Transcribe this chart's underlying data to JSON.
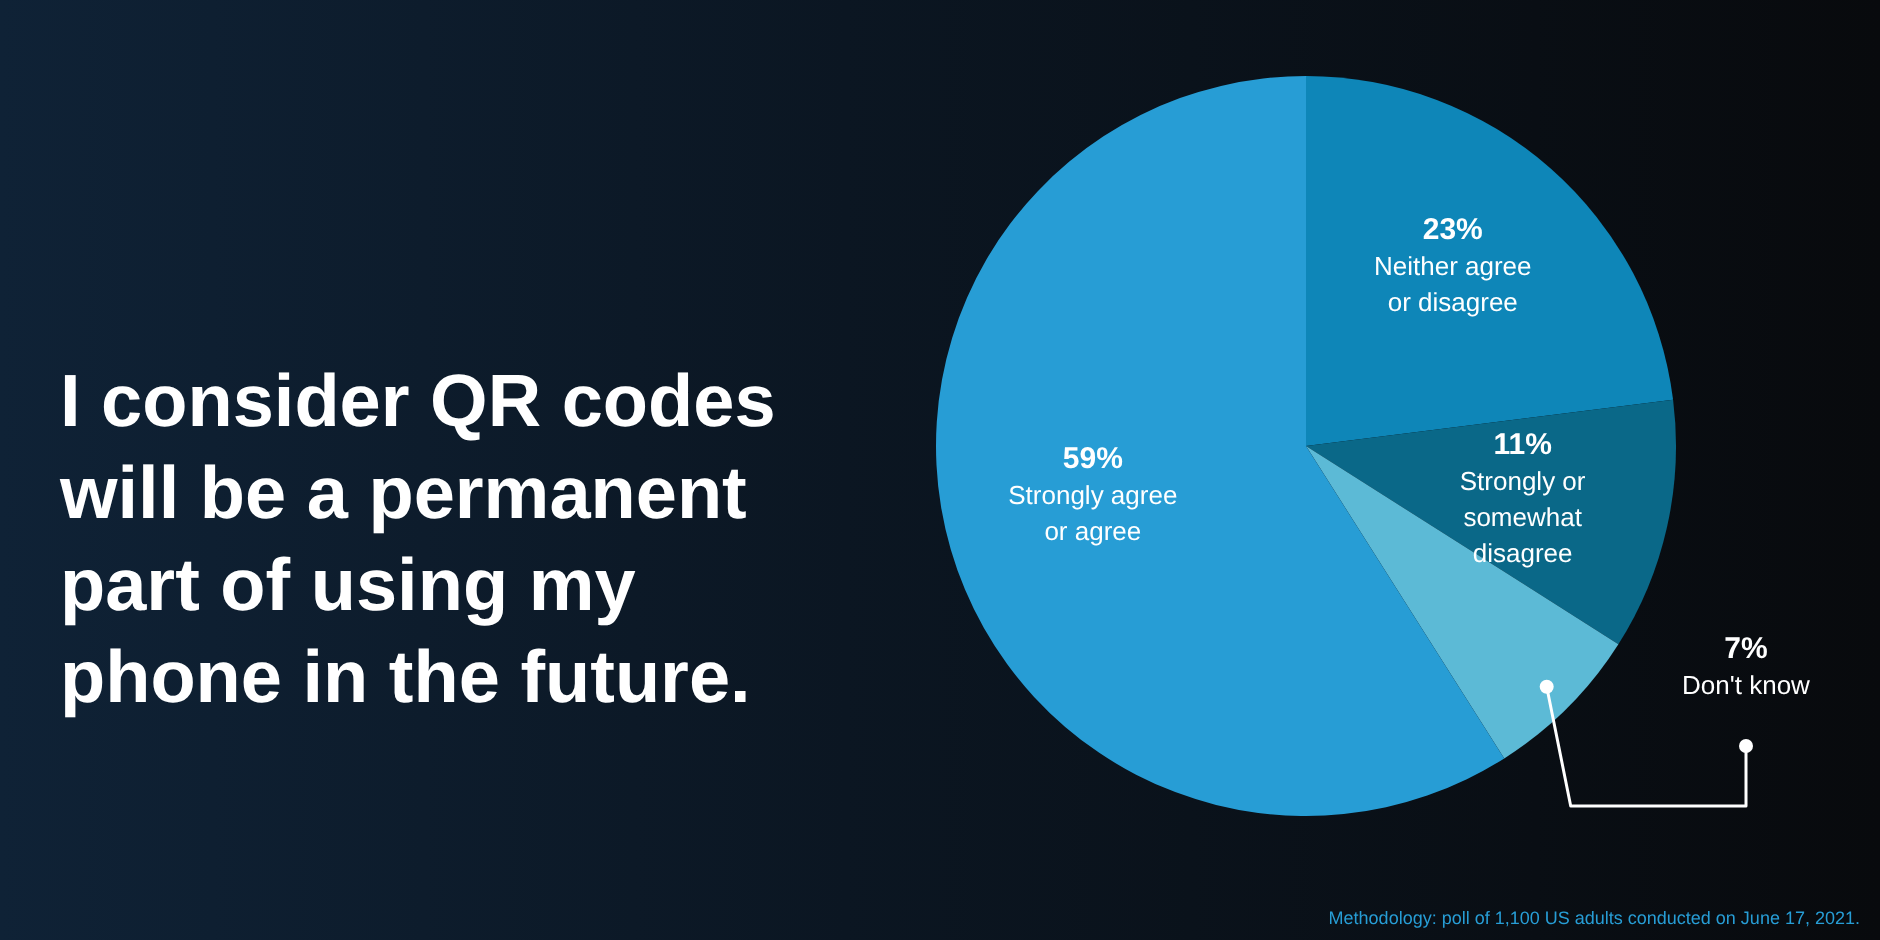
{
  "chart_data": {
    "type": "pie",
    "title": "I consider QR codes will be a permanent part of using my phone in the future.",
    "categories": [
      "Neither agree or disagree",
      "Strongly or somewhat disagree",
      "Don't know",
      "Strongly agree or agree"
    ],
    "values": [
      23,
      11,
      7,
      59
    ],
    "colors": [
      "#0e86b8",
      "#0a6888",
      "#5cbad6",
      "#279dd5"
    ],
    "value_labels": [
      "23%",
      "11%",
      "7%",
      "59%"
    ],
    "annotations": [
      "Methodology: poll of 1,100 US adults conducted on June 17, 2021."
    ]
  }
}
